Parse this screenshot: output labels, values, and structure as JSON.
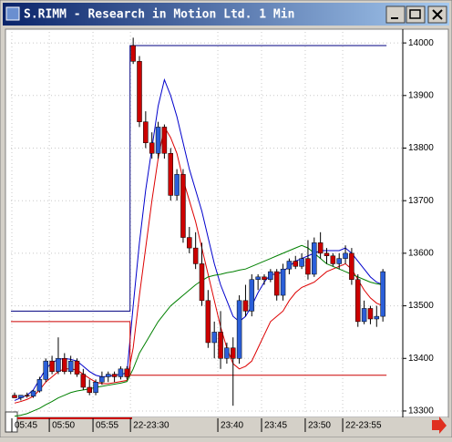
{
  "chart_data": {
    "type": "candlestick",
    "title": "S.RIMM - Research in Motion Ltd. 1 Min",
    "categories": [
      "05:45",
      null,
      null,
      null,
      null,
      null,
      "05:50",
      null,
      null,
      null,
      null,
      null,
      null,
      "05:55",
      null,
      null,
      null,
      null,
      null,
      "22-23:30",
      null,
      null,
      null,
      null,
      null,
      null,
      null,
      null,
      null,
      null,
      null,
      null,
      null,
      "23:40",
      null,
      null,
      null,
      null,
      null,
      null,
      "23:45",
      null,
      null,
      null,
      null,
      null,
      null,
      "23:50",
      null,
      null,
      null,
      null,
      null,
      "22-23:55",
      null,
      null,
      null,
      null,
      null,
      null
    ],
    "open": [
      13330,
      13325,
      13330,
      13328,
      13338,
      13360,
      13395,
      13375,
      13400,
      13375,
      13395,
      13370,
      13345,
      13335,
      13355,
      13365,
      13370,
      13365,
      13380,
      13995,
      13965,
      13850,
      13810,
      13790,
      13840,
      13790,
      13710,
      13750,
      13630,
      13610,
      13580,
      13510,
      13430,
      13450,
      13400,
      13420,
      13400,
      13510,
      13490,
      13550,
      13555,
      13550,
      13565,
      13520,
      13570,
      13585,
      13575,
      13590,
      13560,
      13620,
      13600,
      13595,
      13580,
      13590,
      13600,
      13550,
      13470,
      13495,
      13475,
      13480
    ],
    "high": [
      13335,
      13330,
      13335,
      13340,
      13365,
      13400,
      13405,
      13440,
      13410,
      13405,
      13400,
      13380,
      13360,
      13360,
      13375,
      13375,
      13375,
      13385,
      13385,
      14010,
      13975,
      13870,
      13830,
      13850,
      13845,
      13800,
      13760,
      13760,
      13650,
      13640,
      13620,
      13530,
      13470,
      13490,
      13430,
      13440,
      13520,
      13540,
      13560,
      13560,
      13560,
      13570,
      13570,
      13580,
      13590,
      13595,
      13600,
      13625,
      13630,
      13640,
      13610,
      13600,
      13600,
      13615,
      13610,
      13560,
      13510,
      13500,
      13500,
      13570
    ],
    "low": [
      13325,
      13320,
      13325,
      13325,
      13335,
      13355,
      13370,
      13370,
      13370,
      13370,
      13365,
      13340,
      13330,
      13330,
      13350,
      13355,
      13355,
      13360,
      13360,
      13960,
      13840,
      13800,
      13780,
      13780,
      13780,
      13700,
      13700,
      13620,
      13600,
      13570,
      13500,
      13420,
      13400,
      13380,
      13390,
      13310,
      13390,
      13480,
      13480,
      13530,
      13540,
      13545,
      13510,
      13510,
      13560,
      13570,
      13570,
      13550,
      13555,
      13590,
      13580,
      13575,
      13570,
      13580,
      13540,
      13460,
      13465,
      13465,
      13460,
      13470
    ],
    "close": [
      13325,
      13330,
      13328,
      13338,
      13360,
      13395,
      13375,
      13400,
      13375,
      13395,
      13370,
      13345,
      13335,
      13355,
      13365,
      13370,
      13365,
      13380,
      13365,
      13965,
      13850,
      13810,
      13790,
      13840,
      13790,
      13710,
      13750,
      13630,
      13610,
      13580,
      13510,
      13430,
      13450,
      13400,
      13420,
      13400,
      13510,
      13490,
      13550,
      13555,
      13550,
      13565,
      13520,
      13570,
      13585,
      13575,
      13590,
      13560,
      13620,
      13600,
      13595,
      13580,
      13590,
      13600,
      13550,
      13470,
      13495,
      13475,
      13480,
      13565
    ],
    "up_color": "#2b5fd9",
    "down_color": "#cc0000",
    "series": [
      {
        "color": "#0000cc",
        "style": "line",
        "values": [
          13320,
          13325,
          13330,
          13340,
          13360,
          13380,
          13392,
          13398,
          13400,
          13398,
          13395,
          13385,
          13375,
          13368,
          13365,
          13366,
          13368,
          13370,
          13372,
          13500,
          13620,
          13720,
          13800,
          13880,
          13930,
          13900,
          13860,
          13810,
          13760,
          13720,
          13680,
          13630,
          13580,
          13540,
          13510,
          13480,
          13470,
          13480,
          13500,
          13525,
          13545,
          13560,
          13560,
          13565,
          13575,
          13585,
          13590,
          13595,
          13600,
          13605,
          13605,
          13605,
          13605,
          13610,
          13600,
          13585,
          13570,
          13555,
          13545,
          13540
        ]
      },
      {
        "color": "#dd0000",
        "style": "line",
        "values": [
          13315,
          13318,
          13322,
          13328,
          13340,
          13355,
          13365,
          13375,
          13380,
          13380,
          13378,
          13370,
          13362,
          13355,
          13352,
          13352,
          13354,
          13356,
          13358,
          13420,
          13520,
          13610,
          13700,
          13780,
          13840,
          13820,
          13790,
          13740,
          13700,
          13660,
          13610,
          13560,
          13510,
          13460,
          13420,
          13390,
          13380,
          13385,
          13395,
          13420,
          13445,
          13470,
          13480,
          13490,
          13510,
          13525,
          13535,
          13540,
          13545,
          13555,
          13565,
          13570,
          13575,
          13580,
          13570,
          13550,
          13530,
          13515,
          13505,
          13500
        ]
      },
      {
        "color": "#008000",
        "style": "line",
        "values": [
          13290,
          13292,
          13295,
          13300,
          13305,
          13312,
          13318,
          13325,
          13330,
          13335,
          13338,
          13340,
          13342,
          13345,
          13347,
          13349,
          13351,
          13353,
          13356,
          13380,
          13410,
          13430,
          13450,
          13470,
          13485,
          13500,
          13510,
          13520,
          13530,
          13540,
          13548,
          13555,
          13558,
          13560,
          13563,
          13565,
          13568,
          13570,
          13575,
          13580,
          13585,
          13590,
          13595,
          13600,
          13605,
          13610,
          13615,
          13610,
          13600,
          13590,
          13580,
          13575,
          13570,
          13565,
          13560,
          13555,
          13550,
          13545,
          13542,
          13540
        ]
      },
      {
        "color": "#000080",
        "style": "step",
        "values": [
          13490,
          13490,
          13490,
          13490,
          13490,
          13490,
          13490,
          13490,
          13490,
          13490,
          13490,
          13490,
          13490,
          13490,
          13490,
          13490,
          13490,
          13490,
          13490,
          13995,
          13995,
          13995,
          13995,
          13995,
          13995,
          13995,
          13995,
          13995,
          13995,
          13995,
          13995,
          13995,
          13995,
          13995,
          13995,
          13995,
          13995,
          13995,
          13995,
          13995,
          13995,
          13995,
          13995,
          13995,
          13995,
          13995,
          13995,
          13995,
          13995,
          13995,
          13995,
          13995,
          13995,
          13995,
          13995,
          13995,
          13995,
          13995,
          13995,
          13995
        ]
      },
      {
        "color": "#cc0000",
        "style": "step",
        "values": [
          13470,
          13470,
          13470,
          13470,
          13470,
          13470,
          13470,
          13470,
          13470,
          13470,
          13470,
          13470,
          13470,
          13470,
          13470,
          13470,
          13470,
          13470,
          13470,
          13368,
          13368,
          13368,
          13368,
          13368,
          13368,
          13368,
          13368,
          13368,
          13368,
          13368,
          13368,
          13368,
          13368,
          13368,
          13368,
          13368,
          13368,
          13368,
          13368,
          13368,
          13368,
          13368,
          13368,
          13368,
          13368,
          13368,
          13368,
          13368,
          13368,
          13368,
          13368,
          13368,
          13368,
          13368,
          13368,
          13368,
          13368,
          13368,
          13368,
          13368
        ]
      }
    ],
    "ylim": [
      13293,
      14021
    ],
    "yticks": [
      13300,
      13400,
      13500,
      13600,
      13700,
      13800,
      13900,
      14000
    ],
    "grid": true
  }
}
